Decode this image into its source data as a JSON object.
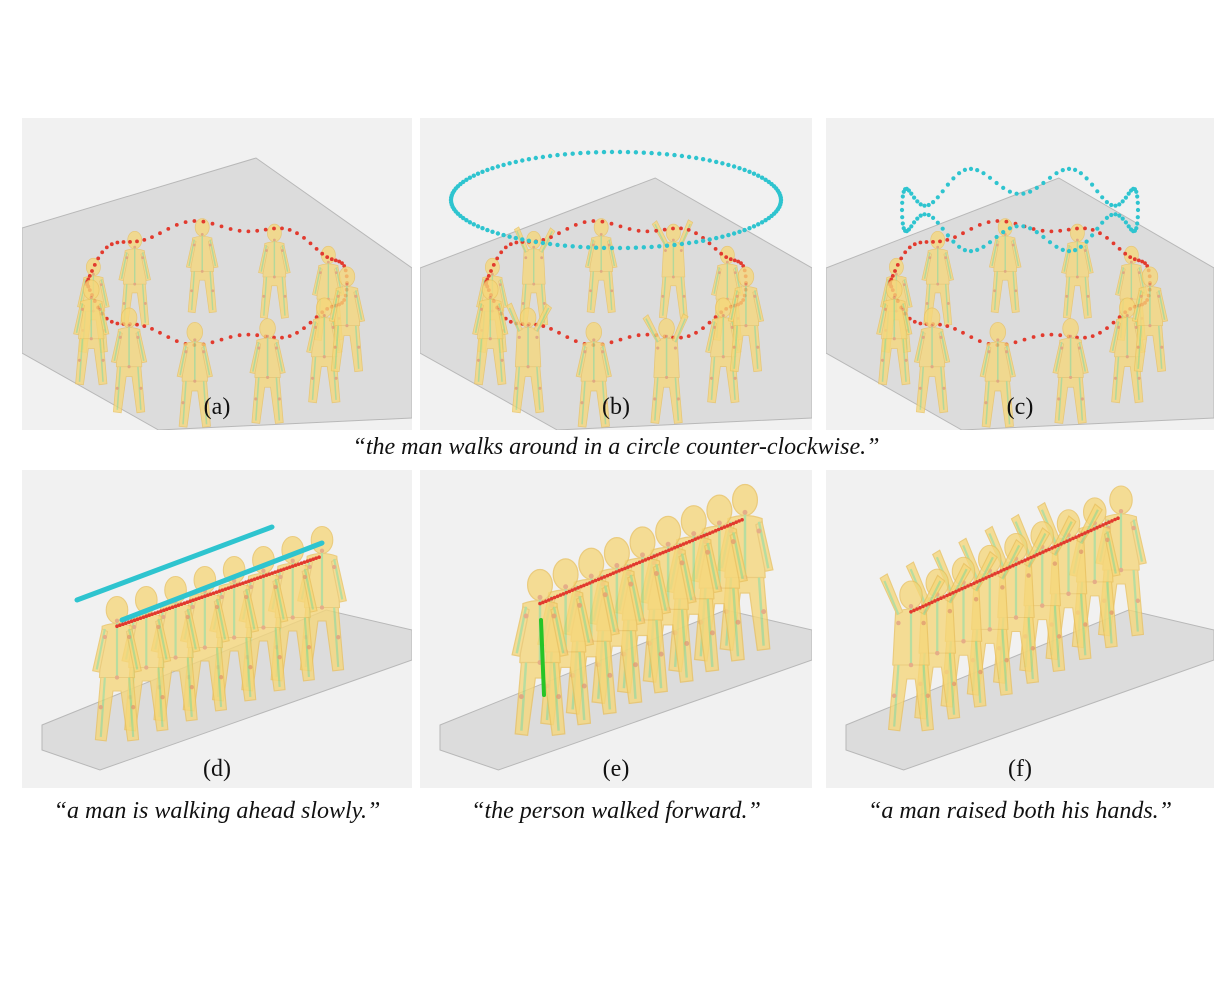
{
  "figure": {
    "panels": [
      {
        "id": "a",
        "label": "(a)",
        "trajectory": "circle",
        "overlays": [
          "red-dotted-pelvis-path"
        ]
      },
      {
        "id": "b",
        "label": "(b)",
        "trajectory": "circle",
        "overlays": [
          "red-dotted-pelvis-path",
          "cyan-dotted-hand-ring"
        ]
      },
      {
        "id": "c",
        "label": "(c)",
        "trajectory": "circle",
        "overlays": [
          "red-dotted-pelvis-path",
          "cyan-dotted-wavy-hand-path"
        ]
      },
      {
        "id": "d",
        "label": "(d)",
        "trajectory": "line",
        "overlays": [
          "red-dotted-pelvis-path",
          "cyan-bars-hand-paths"
        ]
      },
      {
        "id": "e",
        "label": "(e)",
        "trajectory": "line",
        "overlays": [
          "red-dotted-pelvis-path",
          "green-joint-constraint"
        ]
      },
      {
        "id": "f",
        "label": "(f)",
        "trajectory": "line",
        "overlays": [
          "red-dotted-pelvis-path"
        ]
      }
    ],
    "captions": {
      "top": "“the man walks around in a circle counter-clockwise.”",
      "d": "“a man is walking ahead slowly.”",
      "e": "“the person walked forward.”",
      "f": "“a man raised both his hands.”"
    },
    "colors": {
      "body": "#f6d77a",
      "skeleton": "#a8d88a",
      "pelvis_path": "#e23a2e",
      "hand_path": "#2ec4cf",
      "constraint": "#27c427",
      "floor": "#dcdcdc",
      "ground": "#eeeeee"
    }
  }
}
